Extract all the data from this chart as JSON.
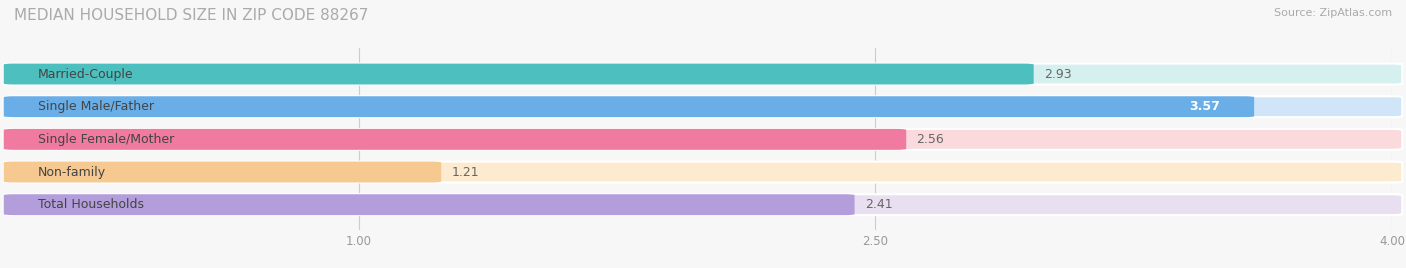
{
  "title": "MEDIAN HOUSEHOLD SIZE IN ZIP CODE 88267",
  "source": "Source: ZipAtlas.com",
  "categories": [
    "Married-Couple",
    "Single Male/Father",
    "Single Female/Mother",
    "Non-family",
    "Total Households"
  ],
  "values": [
    2.93,
    3.57,
    2.56,
    1.21,
    2.41
  ],
  "bar_colors": [
    "#4DBFBF",
    "#6aaee8",
    "#F07AA0",
    "#F5C990",
    "#B39DDB"
  ],
  "bar_bg_colors": [
    "#d6f0f0",
    "#d0e6f8",
    "#fadadd",
    "#fdebd0",
    "#e8e0f0"
  ],
  "xlim": [
    0,
    4.0
  ],
  "xticks": [
    1.0,
    2.5,
    4.0
  ],
  "xticklabels": [
    "1.00",
    "2.50",
    "4.00"
  ],
  "label_fontsize": 9,
  "value_fontsize": 9,
  "title_fontsize": 11,
  "bg_color": "#f7f7f7"
}
